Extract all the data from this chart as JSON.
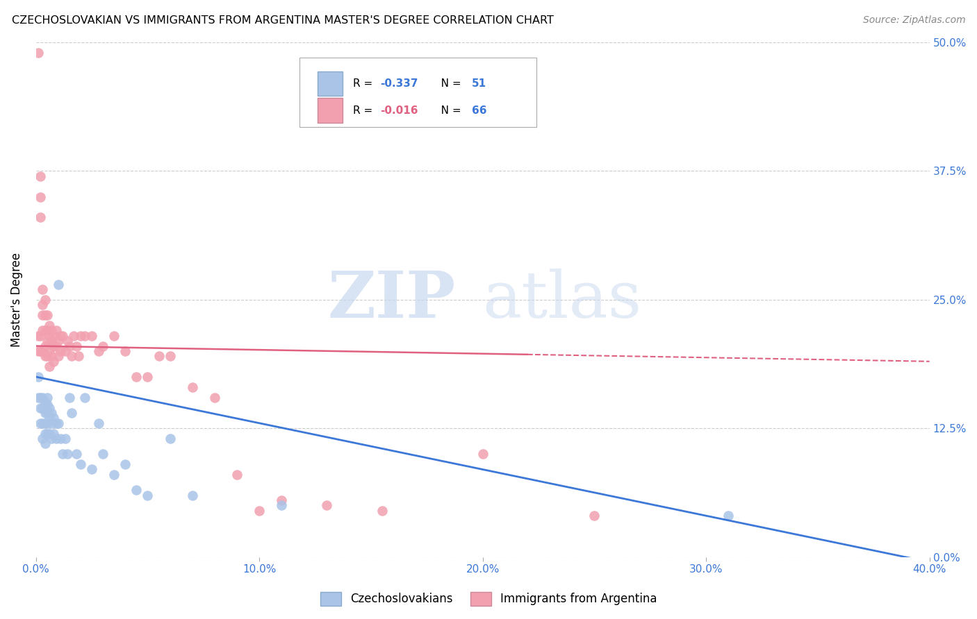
{
  "title": "CZECHOSLOVAKIAN VS IMMIGRANTS FROM ARGENTINA MASTER'S DEGREE CORRELATION CHART",
  "source": "Source: ZipAtlas.com",
  "ylabel": "Master's Degree",
  "xlabel_ticks": [
    "0.0%",
    "10.0%",
    "20.0%",
    "30.0%",
    "40.0%"
  ],
  "xlabel_vals": [
    0.0,
    0.1,
    0.2,
    0.3,
    0.4
  ],
  "ylabel_ticks": [
    "0.0%",
    "12.5%",
    "25.0%",
    "37.5%",
    "50.0%"
  ],
  "ylabel_vals": [
    0.0,
    0.125,
    0.25,
    0.375,
    0.5
  ],
  "xlim": [
    0.0,
    0.4
  ],
  "ylim": [
    0.0,
    0.5
  ],
  "blue_R": -0.337,
  "blue_N": 51,
  "pink_R": -0.016,
  "pink_N": 66,
  "blue_color": "#aac4e8",
  "pink_color": "#f2a0b0",
  "blue_line_color": "#3c78d8",
  "pink_line_color": "#e06080",
  "watermark_zip": "ZIP",
  "watermark_atlas": "atlas",
  "legend_label_blue": "Czechoslovakians",
  "legend_label_pink": "Immigrants from Argentina",
  "blue_x": [
    0.001,
    0.001,
    0.002,
    0.002,
    0.002,
    0.003,
    0.003,
    0.003,
    0.003,
    0.004,
    0.004,
    0.004,
    0.004,
    0.004,
    0.005,
    0.005,
    0.005,
    0.005,
    0.005,
    0.006,
    0.006,
    0.006,
    0.007,
    0.007,
    0.007,
    0.008,
    0.008,
    0.009,
    0.009,
    0.01,
    0.01,
    0.011,
    0.012,
    0.013,
    0.014,
    0.015,
    0.016,
    0.018,
    0.02,
    0.022,
    0.025,
    0.028,
    0.03,
    0.035,
    0.04,
    0.045,
    0.05,
    0.06,
    0.07,
    0.11,
    0.31
  ],
  "blue_y": [
    0.175,
    0.155,
    0.155,
    0.145,
    0.13,
    0.155,
    0.145,
    0.13,
    0.115,
    0.15,
    0.14,
    0.13,
    0.12,
    0.11,
    0.155,
    0.148,
    0.14,
    0.13,
    0.12,
    0.145,
    0.135,
    0.12,
    0.14,
    0.13,
    0.115,
    0.135,
    0.12,
    0.13,
    0.115,
    0.265,
    0.13,
    0.115,
    0.1,
    0.115,
    0.1,
    0.155,
    0.14,
    0.1,
    0.09,
    0.155,
    0.085,
    0.13,
    0.1,
    0.08,
    0.09,
    0.065,
    0.06,
    0.115,
    0.06,
    0.05,
    0.04
  ],
  "pink_x": [
    0.001,
    0.001,
    0.001,
    0.002,
    0.002,
    0.002,
    0.002,
    0.002,
    0.003,
    0.003,
    0.003,
    0.003,
    0.003,
    0.004,
    0.004,
    0.004,
    0.004,
    0.004,
    0.005,
    0.005,
    0.005,
    0.005,
    0.006,
    0.006,
    0.006,
    0.006,
    0.007,
    0.007,
    0.007,
    0.008,
    0.008,
    0.008,
    0.009,
    0.009,
    0.01,
    0.01,
    0.011,
    0.011,
    0.012,
    0.013,
    0.014,
    0.015,
    0.016,
    0.017,
    0.018,
    0.019,
    0.02,
    0.022,
    0.025,
    0.028,
    0.03,
    0.035,
    0.04,
    0.045,
    0.05,
    0.055,
    0.06,
    0.07,
    0.08,
    0.09,
    0.1,
    0.11,
    0.13,
    0.155,
    0.2,
    0.25
  ],
  "pink_y": [
    0.49,
    0.215,
    0.2,
    0.37,
    0.35,
    0.33,
    0.215,
    0.2,
    0.26,
    0.245,
    0.235,
    0.22,
    0.2,
    0.25,
    0.235,
    0.22,
    0.205,
    0.195,
    0.235,
    0.22,
    0.21,
    0.195,
    0.225,
    0.215,
    0.2,
    0.185,
    0.22,
    0.21,
    0.195,
    0.215,
    0.205,
    0.19,
    0.22,
    0.205,
    0.21,
    0.195,
    0.215,
    0.2,
    0.215,
    0.2,
    0.21,
    0.205,
    0.195,
    0.215,
    0.205,
    0.195,
    0.215,
    0.215,
    0.215,
    0.2,
    0.205,
    0.215,
    0.2,
    0.175,
    0.175,
    0.195,
    0.195,
    0.165,
    0.155,
    0.08,
    0.045,
    0.055,
    0.05,
    0.045,
    0.1,
    0.04
  ],
  "blue_line_x0": 0.0,
  "blue_line_y0": 0.175,
  "blue_line_x1": 0.4,
  "blue_line_y1": -0.005,
  "pink_line_x0": 0.0,
  "pink_line_y0": 0.205,
  "pink_line_x1": 0.4,
  "pink_line_y1": 0.19
}
